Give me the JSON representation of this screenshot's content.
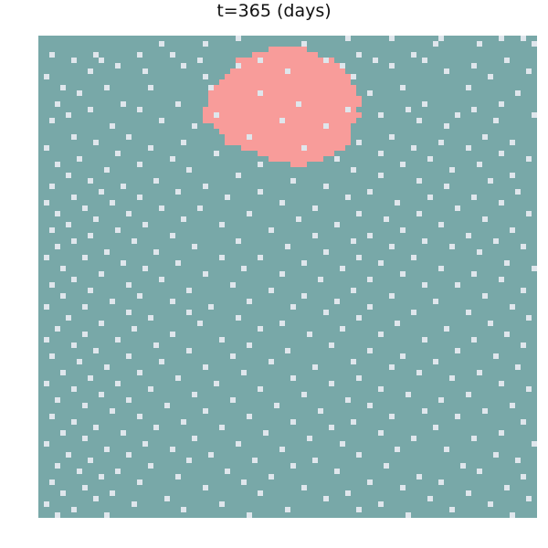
{
  "title": "t=365 (days)",
  "colors": {
    "susceptible": "#78a8a8",
    "infected": "#f89c9a",
    "empty": "#dfe6ec",
    "background": "#ffffff"
  },
  "lattice": {
    "cols": 91,
    "rows": 88
  },
  "infected_rows": [
    [
      2,
      42,
      48
    ],
    [
      3,
      39,
      50
    ],
    [
      4,
      36,
      53
    ],
    [
      5,
      36,
      54
    ],
    [
      6,
      35,
      55
    ],
    [
      7,
      34,
      56
    ],
    [
      8,
      33,
      56
    ],
    [
      9,
      32,
      57
    ],
    [
      10,
      31,
      57
    ],
    [
      11,
      31,
      58
    ],
    [
      12,
      31,
      58
    ],
    [
      13,
      30,
      57
    ],
    [
      14,
      30,
      58
    ],
    [
      15,
      30,
      57
    ],
    [
      16,
      32,
      56
    ],
    [
      17,
      33,
      56
    ],
    [
      18,
      34,
      56
    ],
    [
      19,
      34,
      56
    ],
    [
      20,
      37,
      55
    ],
    [
      21,
      40,
      53
    ],
    [
      22,
      42,
      51
    ],
    [
      23,
      46,
      48
    ]
  ],
  "empty_cells": [
    [
      0,
      36
    ],
    [
      0,
      56
    ],
    [
      0,
      64
    ],
    [
      0,
      73
    ],
    [
      0,
      84
    ],
    [
      0,
      88
    ],
    [
      1,
      22
    ],
    [
      1,
      30
    ],
    [
      1,
      48
    ],
    [
      1,
      72
    ],
    [
      1,
      80
    ],
    [
      1,
      90
    ],
    [
      3,
      2
    ],
    [
      3,
      10
    ],
    [
      3,
      18
    ],
    [
      3,
      24
    ],
    [
      3,
      58
    ],
    [
      3,
      68
    ],
    [
      4,
      6
    ],
    [
      4,
      11
    ],
    [
      4,
      29
    ],
    [
      4,
      40
    ],
    [
      4,
      52
    ],
    [
      4,
      61
    ],
    [
      4,
      70
    ],
    [
      4,
      85
    ],
    [
      5,
      14
    ],
    [
      5,
      26
    ],
    [
      5,
      36
    ],
    [
      5,
      55
    ],
    [
      5,
      64
    ],
    [
      5,
      79
    ],
    [
      6,
      9
    ],
    [
      6,
      19
    ],
    [
      6,
      45
    ],
    [
      6,
      74
    ],
    [
      6,
      89
    ],
    [
      7,
      1
    ],
    [
      7,
      30
    ],
    [
      7,
      57
    ],
    [
      7,
      82
    ],
    [
      9,
      4
    ],
    [
      9,
      12
    ],
    [
      9,
      20
    ],
    [
      9,
      31
    ],
    [
      9,
      66
    ],
    [
      9,
      78
    ],
    [
      10,
      7
    ],
    [
      10,
      40
    ],
    [
      10,
      60
    ],
    [
      10,
      87
    ],
    [
      12,
      3
    ],
    [
      12,
      15
    ],
    [
      12,
      25
    ],
    [
      12,
      47
    ],
    [
      12,
      70
    ],
    [
      12,
      84
    ],
    [
      13,
      9
    ],
    [
      13,
      18
    ],
    [
      13,
      56
    ],
    [
      13,
      67
    ],
    [
      13,
      79
    ],
    [
      14,
      5
    ],
    [
      14,
      32
    ],
    [
      14,
      62
    ],
    [
      14,
      76
    ],
    [
      14,
      90
    ],
    [
      15,
      2
    ],
    [
      15,
      22
    ],
    [
      15,
      44
    ],
    [
      15,
      69
    ],
    [
      15,
      83
    ],
    [
      16,
      13
    ],
    [
      16,
      28
    ],
    [
      16,
      52
    ],
    [
      16,
      74
    ],
    [
      18,
      6
    ],
    [
      18,
      16
    ],
    [
      18,
      38
    ],
    [
      18,
      64
    ],
    [
      18,
      81
    ],
    [
      19,
      10
    ],
    [
      19,
      26
    ],
    [
      19,
      58
    ],
    [
      19,
      73
    ],
    [
      19,
      86
    ],
    [
      20,
      1
    ],
    [
      20,
      20
    ],
    [
      20,
      48
    ],
    [
      20,
      68
    ],
    [
      20,
      78
    ],
    [
      21,
      14
    ],
    [
      21,
      32
    ],
    [
      21,
      62
    ],
    [
      21,
      84
    ],
    [
      22,
      7
    ],
    [
      22,
      24
    ],
    [
      22,
      54
    ],
    [
      22,
      71
    ],
    [
      22,
      89
    ],
    [
      23,
      3
    ],
    [
      23,
      18
    ],
    [
      23,
      40
    ],
    [
      23,
      66
    ],
    [
      23,
      80
    ],
    [
      24,
      12
    ],
    [
      24,
      27
    ],
    [
      24,
      57
    ],
    [
      24,
      75
    ],
    [
      25,
      5
    ],
    [
      25,
      36
    ],
    [
      25,
      62
    ],
    [
      25,
      86
    ],
    [
      26,
      9
    ],
    [
      26,
      21
    ],
    [
      26,
      46
    ],
    [
      26,
      69
    ],
    [
      26,
      82
    ],
    [
      27,
      2
    ],
    [
      27,
      15
    ],
    [
      27,
      30
    ],
    [
      27,
      52
    ],
    [
      27,
      74
    ],
    [
      28,
      11
    ],
    [
      28,
      25
    ],
    [
      28,
      40
    ],
    [
      28,
      60
    ],
    [
      28,
      87
    ],
    [
      29,
      6
    ],
    [
      29,
      18
    ],
    [
      29,
      34
    ],
    [
      29,
      56
    ],
    [
      29,
      71
    ],
    [
      29,
      79
    ],
    [
      30,
      1
    ],
    [
      30,
      13
    ],
    [
      30,
      44
    ],
    [
      30,
      65
    ],
    [
      30,
      84
    ],
    [
      31,
      8
    ],
    [
      31,
      22
    ],
    [
      31,
      29
    ],
    [
      31,
      50
    ],
    [
      31,
      76
    ],
    [
      32,
      3
    ],
    [
      32,
      16
    ],
    [
      32,
      38
    ],
    [
      32,
      58
    ],
    [
      32,
      69
    ],
    [
      32,
      89
    ],
    [
      33,
      10
    ],
    [
      33,
      26
    ],
    [
      33,
      47
    ],
    [
      33,
      63
    ],
    [
      33,
      81
    ],
    [
      34,
      5
    ],
    [
      34,
      19
    ],
    [
      34,
      33
    ],
    [
      34,
      54
    ],
    [
      34,
      73
    ],
    [
      35,
      2
    ],
    [
      35,
      14
    ],
    [
      35,
      42
    ],
    [
      35,
      66
    ],
    [
      35,
      86
    ],
    [
      36,
      9
    ],
    [
      36,
      24
    ],
    [
      36,
      50
    ],
    [
      36,
      60
    ],
    [
      36,
      78
    ],
    [
      37,
      6
    ],
    [
      37,
      17
    ],
    [
      37,
      36
    ],
    [
      37,
      57
    ],
    [
      37,
      70
    ],
    [
      37,
      83
    ],
    [
      38,
      3
    ],
    [
      38,
      28
    ],
    [
      38,
      45
    ],
    [
      38,
      64
    ],
    [
      38,
      75
    ],
    [
      38,
      88
    ],
    [
      39,
      12
    ],
    [
      39,
      21
    ],
    [
      39,
      52
    ],
    [
      39,
      80
    ],
    [
      40,
      1
    ],
    [
      40,
      8
    ],
    [
      40,
      33
    ],
    [
      40,
      40
    ],
    [
      40,
      58
    ],
    [
      40,
      68
    ],
    [
      41,
      15
    ],
    [
      41,
      25
    ],
    [
      41,
      48
    ],
    [
      41,
      62
    ],
    [
      41,
      85
    ],
    [
      42,
      4
    ],
    [
      42,
      19
    ],
    [
      42,
      37
    ],
    [
      42,
      55
    ],
    [
      42,
      73
    ],
    [
      42,
      90
    ],
    [
      43,
      11
    ],
    [
      43,
      30
    ],
    [
      43,
      44
    ],
    [
      43,
      66
    ],
    [
      43,
      79
    ],
    [
      44,
      6
    ],
    [
      44,
      22
    ],
    [
      44,
      51
    ],
    [
      44,
      60
    ],
    [
      44,
      84
    ],
    [
      45,
      2
    ],
    [
      45,
      16
    ],
    [
      45,
      35
    ],
    [
      45,
      70
    ],
    [
      45,
      76
    ],
    [
      46,
      9
    ],
    [
      46,
      27
    ],
    [
      46,
      42
    ],
    [
      46,
      57
    ],
    [
      46,
      88
    ],
    [
      47,
      4
    ],
    [
      47,
      18
    ],
    [
      47,
      48
    ],
    [
      47,
      64
    ],
    [
      47,
      81
    ],
    [
      48,
      13
    ],
    [
      48,
      24
    ],
    [
      48,
      38
    ],
    [
      48,
      54
    ],
    [
      48,
      72
    ],
    [
      49,
      1
    ],
    [
      49,
      8
    ],
    [
      49,
      31
    ],
    [
      49,
      46
    ],
    [
      49,
      60
    ],
    [
      49,
      86
    ],
    [
      50,
      16
    ],
    [
      50,
      27
    ],
    [
      50,
      52
    ],
    [
      50,
      68
    ],
    [
      50,
      78
    ],
    [
      51,
      5
    ],
    [
      51,
      20
    ],
    [
      51,
      36
    ],
    [
      51,
      58
    ],
    [
      51,
      89
    ],
    [
      52,
      11
    ],
    [
      52,
      29
    ],
    [
      52,
      44
    ],
    [
      52,
      65
    ],
    [
      52,
      82
    ],
    [
      53,
      3
    ],
    [
      53,
      17
    ],
    [
      53,
      40
    ],
    [
      53,
      55
    ],
    [
      53,
      74
    ],
    [
      54,
      8
    ],
    [
      54,
      24
    ],
    [
      54,
      49
    ],
    [
      54,
      62
    ],
    [
      54,
      85
    ],
    [
      55,
      1
    ],
    [
      55,
      14
    ],
    [
      55,
      33
    ],
    [
      55,
      70
    ],
    [
      55,
      79
    ],
    [
      56,
      6
    ],
    [
      56,
      21
    ],
    [
      56,
      38
    ],
    [
      56,
      53
    ],
    [
      56,
      88
    ],
    [
      57,
      10
    ],
    [
      57,
      27
    ],
    [
      57,
      45
    ],
    [
      57,
      60
    ],
    [
      57,
      76
    ],
    [
      58,
      2
    ],
    [
      58,
      16
    ],
    [
      58,
      35
    ],
    [
      58,
      66
    ],
    [
      58,
      83
    ],
    [
      59,
      7
    ],
    [
      59,
      22
    ],
    [
      59,
      42
    ],
    [
      59,
      57
    ],
    [
      59,
      72
    ],
    [
      60,
      12
    ],
    [
      60,
      30
    ],
    [
      60,
      50
    ],
    [
      60,
      64
    ],
    [
      60,
      87
    ],
    [
      61,
      4
    ],
    [
      61,
      18
    ],
    [
      61,
      37
    ],
    [
      61,
      69
    ],
    [
      61,
      80
    ],
    [
      62,
      9
    ],
    [
      62,
      25
    ],
    [
      62,
      46
    ],
    [
      62,
      58
    ],
    [
      62,
      75
    ],
    [
      63,
      1
    ],
    [
      63,
      14
    ],
    [
      63,
      32
    ],
    [
      63,
      53
    ],
    [
      63,
      84
    ],
    [
      64,
      6
    ],
    [
      64,
      20
    ],
    [
      64,
      40
    ],
    [
      64,
      62
    ],
    [
      64,
      89
    ],
    [
      65,
      11
    ],
    [
      65,
      28
    ],
    [
      65,
      48
    ],
    [
      65,
      67
    ],
    [
      65,
      78
    ],
    [
      66,
      3
    ],
    [
      66,
      16
    ],
    [
      66,
      35
    ],
    [
      66,
      56
    ],
    [
      66,
      73
    ],
    [
      67,
      8
    ],
    [
      67,
      23
    ],
    [
      67,
      43
    ],
    [
      67,
      60
    ],
    [
      67,
      86
    ],
    [
      68,
      13
    ],
    [
      68,
      30
    ],
    [
      68,
      51
    ],
    [
      68,
      70
    ],
    [
      68,
      81
    ],
    [
      69,
      2
    ],
    [
      69,
      18
    ],
    [
      69,
      38
    ],
    [
      69,
      64
    ],
    [
      69,
      76
    ],
    [
      70,
      6
    ],
    [
      70,
      26
    ],
    [
      70,
      46
    ],
    [
      70,
      57
    ],
    [
      70,
      88
    ],
    [
      71,
      10
    ],
    [
      71,
      21
    ],
    [
      71,
      33
    ],
    [
      71,
      53
    ],
    [
      71,
      72
    ],
    [
      72,
      4
    ],
    [
      72,
      15
    ],
    [
      72,
      41
    ],
    [
      72,
      62
    ],
    [
      72,
      84
    ],
    [
      73,
      8
    ],
    [
      73,
      28
    ],
    [
      73,
      49
    ],
    [
      73,
      68
    ],
    [
      73,
      79
    ],
    [
      74,
      1
    ],
    [
      74,
      19
    ],
    [
      74,
      36
    ],
    [
      74,
      55
    ],
    [
      74,
      90
    ],
    [
      75,
      12
    ],
    [
      75,
      24
    ],
    [
      75,
      44
    ],
    [
      75,
      65
    ],
    [
      75,
      74
    ],
    [
      76,
      5
    ],
    [
      76,
      16
    ],
    [
      76,
      31
    ],
    [
      76,
      58
    ],
    [
      76,
      83
    ],
    [
      77,
      9
    ],
    [
      77,
      27
    ],
    [
      77,
      39
    ],
    [
      77,
      50
    ],
    [
      77,
      87
    ],
    [
      78,
      3
    ],
    [
      78,
      20
    ],
    [
      78,
      46
    ],
    [
      78,
      63
    ],
    [
      78,
      77
    ],
    [
      79,
      7
    ],
    [
      79,
      14
    ],
    [
      79,
      34
    ],
    [
      79,
      54
    ],
    [
      79,
      80
    ],
    [
      80,
      11
    ],
    [
      80,
      25
    ],
    [
      80,
      42
    ],
    [
      80,
      69
    ],
    [
      80,
      88
    ],
    [
      81,
      2
    ],
    [
      81,
      18
    ],
    [
      81,
      37
    ],
    [
      81,
      60
    ],
    [
      81,
      73
    ],
    [
      82,
      8
    ],
    [
      82,
      30
    ],
    [
      82,
      48
    ],
    [
      82,
      66
    ],
    [
      82,
      85
    ],
    [
      83,
      4
    ],
    [
      83,
      13
    ],
    [
      83,
      40
    ],
    [
      83,
      56
    ],
    [
      83,
      78
    ],
    [
      84,
      10
    ],
    [
      84,
      23
    ],
    [
      84,
      52
    ],
    [
      84,
      71
    ],
    [
      84,
      89
    ],
    [
      85,
      1
    ],
    [
      85,
      17
    ],
    [
      85,
      33
    ],
    [
      85,
      62
    ],
    [
      85,
      82
    ],
    [
      86,
      6
    ],
    [
      86,
      26
    ],
    [
      86,
      45
    ],
    [
      86,
      58
    ],
    [
      86,
      75
    ],
    [
      87,
      3
    ],
    [
      87,
      12
    ],
    [
      87,
      38
    ],
    [
      87,
      67
    ],
    [
      87,
      86
    ]
  ]
}
